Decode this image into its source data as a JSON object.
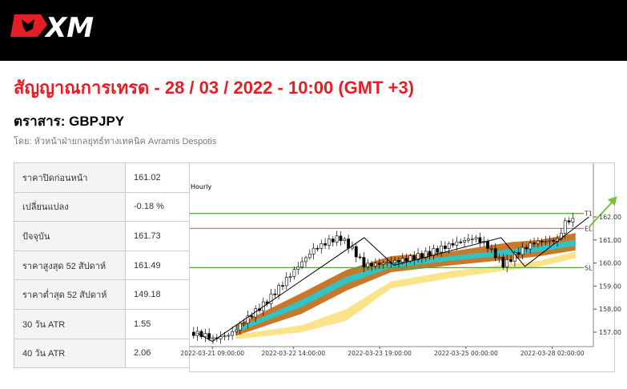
{
  "header": {
    "logo_text": "XM"
  },
  "title": "สัญญาณการเทรด - 28 / 03 / 2022 - 10:00 (GMT +3)",
  "instrument": "ตราสาร: GBPJPY",
  "author": "โดย: หัวหน้าฝ่ายกลยุทธ์ทางเทคนิค Avramis Despotis",
  "stats": [
    {
      "label": "ราคาปิดก่อนหน้า",
      "value": "161.02"
    },
    {
      "label": "เปลี่ยนแปลง",
      "value": "-0.18 %"
    },
    {
      "label": "ปัจจุบัน",
      "value": "161.73"
    },
    {
      "label": "ราคาสูงสุด 52 สัปดาห์",
      "value": "161.49"
    },
    {
      "label": "ราคาต่ำสุด 52 สัปดาห์",
      "value": "149.18"
    },
    {
      "label": "30 วัน ATR",
      "value": "1.55"
    },
    {
      "label": "40 วัน ATR",
      "value": "2.06"
    }
  ],
  "colors": {
    "red": "#e41e26",
    "orange": "#c8782a",
    "teal": "#2ec4c8",
    "yellow": "#fbe38a",
    "green": "#5a9e4a",
    "el": "#c87a7a",
    "arrow": "#7cc143"
  },
  "chart_data": {
    "type": "line",
    "title": "Hourly",
    "ylim": [
      156.4,
      163.0
    ],
    "xlim": [
      -7.6,
      128
    ],
    "yticks": [
      {
        "v": 157,
        "label": "157.00"
      },
      {
        "v": 158,
        "label": "158.00"
      },
      {
        "v": 159,
        "label": "159.00"
      },
      {
        "v": 160,
        "label": "160.00"
      },
      {
        "v": 161,
        "label": "161.00"
      },
      {
        "v": 162,
        "label": "162.00"
      }
    ],
    "xticks": [
      {
        "h": 0,
        "label": "2022-03-21 09:00:00"
      },
      {
        "h": 27.2,
        "label": "2022-03-22 14:00:00"
      },
      {
        "h": 56.2,
        "label": "2022-03-23 19:00:00"
      },
      {
        "h": 85.2,
        "label": "2022-03-25 00:00:00"
      },
      {
        "h": 114.2,
        "label": "2022-03-28 02:00:00"
      }
    ],
    "levels": [
      {
        "name": "T1",
        "value": 162.15,
        "color": "#6aa84f"
      },
      {
        "name": "EL",
        "value": 161.5,
        "color": "#c87a7a"
      },
      {
        "name": "SL",
        "value": 159.8,
        "color": "#5a9e4a"
      }
    ],
    "price_path": [
      [
        -7.6,
        157.0
      ],
      [
        -2,
        156.85
      ],
      [
        0,
        156.7
      ],
      [
        6,
        156.9
      ],
      [
        10,
        157.4
      ],
      [
        18,
        158.3
      ],
      [
        27,
        159.6
      ],
      [
        34,
        160.6
      ],
      [
        40,
        161.0
      ],
      [
        43,
        161.1
      ],
      [
        47,
        160.6
      ],
      [
        51,
        159.9
      ],
      [
        55,
        159.95
      ],
      [
        63,
        160.1
      ],
      [
        72,
        160.4
      ],
      [
        80,
        160.8
      ],
      [
        88,
        161.1
      ],
      [
        92,
        160.8
      ],
      [
        98,
        159.9
      ],
      [
        102,
        160.4
      ],
      [
        108,
        160.9
      ],
      [
        116,
        161.0
      ],
      [
        119,
        161.9
      ],
      [
        122,
        161.8
      ]
    ],
    "zigzag": [
      [
        -5,
        156.95
      ],
      [
        0,
        156.6
      ],
      [
        51,
        161.1
      ],
      [
        61,
        159.9
      ],
      [
        97,
        161.1
      ],
      [
        105,
        159.85
      ],
      [
        126.5,
        162.0
      ]
    ],
    "bands": {
      "hours": [
        8,
        30,
        45,
        60,
        80,
        100,
        110,
        122
      ],
      "orange_top": [
        157.3,
        158.7,
        159.7,
        160.3,
        160.5,
        160.9,
        161.0,
        161.3
      ],
      "teal_top": [
        157.15,
        158.4,
        159.4,
        160.0,
        160.3,
        160.6,
        160.75,
        161.0
      ],
      "teal_bottom": [
        157.0,
        158.1,
        159.1,
        159.8,
        160.1,
        160.35,
        160.5,
        160.75
      ],
      "orange_bottom": [
        156.85,
        157.8,
        158.8,
        159.6,
        159.9,
        160.15,
        160.3,
        160.55
      ],
      "yellow_top": [
        156.9,
        157.3,
        158.0,
        159.2,
        159.65,
        159.95,
        160.1,
        160.5
      ],
      "yellow_bottom": [
        156.7,
        157.0,
        157.5,
        158.9,
        159.35,
        159.7,
        159.85,
        160.2
      ]
    },
    "target_arrow": [
      [
        126.8,
        161.6
      ],
      [
        136,
        162.9
      ]
    ]
  }
}
